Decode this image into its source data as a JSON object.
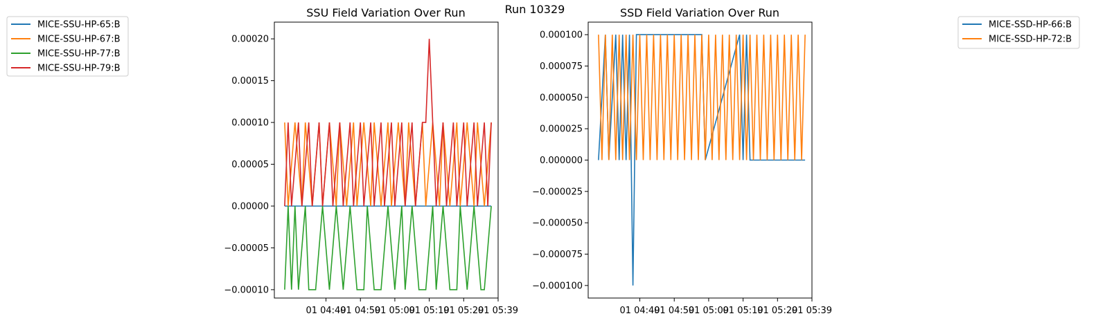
{
  "suptitle": "Run 10329",
  "chart_data": [
    {
      "type": "line",
      "title": "SSU Field Variation Over Run",
      "xlabel": "",
      "ylabel": "",
      "ylim": [
        -0.00011,
        0.00022
      ],
      "xlim": [
        "01 04:34",
        "01 05:39"
      ],
      "y_ticks": [
        -0.0001,
        -5e-05,
        0,
        5e-05,
        0.0001,
        0.00015,
        0.0002
      ],
      "y_tick_labels": [
        "−0.00010",
        "−0.00005",
        "0.00000",
        "0.00005",
        "0.00010",
        "0.00015",
        "0.00020"
      ],
      "x_ticks": [
        "01 04:49",
        "01 04:59",
        "01 05:09",
        "01 05:19",
        "01 05:29",
        "01 05:39"
      ],
      "legend": "outside-left",
      "series": [
        {
          "name": "MICE-SSU-HP-65:B",
          "color": "#1f77b4",
          "x": [
            "01 04:37",
            "01 05:37"
          ],
          "values": [
            0,
            0
          ]
        },
        {
          "name": "MICE-SSU-HP-67:B",
          "color": "#ff7f0e",
          "x": [
            "01 04:37",
            "01 04:38",
            "01 04:40",
            "01 04:42",
            "01 04:43",
            "01 04:45",
            "01 04:47",
            "01 04:48",
            "01 04:50",
            "01 04:52",
            "01 04:53",
            "01 04:55",
            "01 04:57",
            "01 04:58",
            "01 05:00",
            "01 05:02",
            "01 05:03",
            "01 05:05",
            "01 05:07",
            "01 05:08",
            "01 05:10",
            "01 05:12",
            "01 05:13",
            "01 05:15",
            "01 05:17",
            "01 05:18",
            "01 05:20",
            "01 05:22",
            "01 05:23",
            "01 05:25",
            "01 05:27",
            "01 05:28",
            "01 05:30",
            "01 05:32",
            "01 05:33",
            "01 05:35",
            "01 05:37"
          ],
          "values": [
            0.0001,
            0,
            0.0001,
            0,
            0.0001,
            0,
            0.0001,
            0,
            0.0001,
            0,
            0.0001,
            0,
            0.0001,
            0,
            0.0001,
            0,
            0.0001,
            0,
            0.0001,
            0,
            0.0001,
            0,
            0.0001,
            0,
            0.0001,
            0,
            0.0001,
            0,
            0.0001,
            0,
            0.0001,
            0,
            0.0001,
            0,
            0.0001,
            0,
            0.0001
          ]
        },
        {
          "name": "MICE-SSU-HP-77:B",
          "color": "#2ca02c",
          "x": [
            "01 04:37",
            "01 04:38",
            "01 04:39",
            "01 04:40",
            "01 04:41",
            "01 04:43",
            "01 04:44",
            "01 04:46",
            "01 04:48",
            "01 04:50",
            "01 04:52",
            "01 04:54",
            "01 04:56",
            "01 04:58",
            "01 05:00",
            "01 05:01",
            "01 05:03",
            "01 05:05",
            "01 05:07",
            "01 05:09",
            "01 05:11",
            "01 05:12",
            "01 05:14",
            "01 05:16",
            "01 05:18",
            "01 05:20",
            "01 05:21",
            "01 05:23",
            "01 05:25",
            "01 05:27",
            "01 05:28",
            "01 05:30",
            "01 05:32",
            "01 05:34",
            "01 05:35",
            "01 05:37"
          ],
          "values": [
            -0.0001,
            0,
            -0.0001,
            0,
            -0.0001,
            0,
            -0.0001,
            -0.0001,
            0,
            -0.0001,
            0,
            -0.0001,
            0,
            -0.0001,
            -0.0001,
            0,
            -0.0001,
            -0.0001,
            0,
            -0.0001,
            0,
            -0.0001,
            0,
            -0.0001,
            -0.0001,
            0,
            -0.0001,
            0,
            -0.0001,
            -0.0001,
            0,
            -0.0001,
            0,
            -0.0001,
            -0.0001,
            0
          ]
        },
        {
          "name": "MICE-SSU-HP-79:B",
          "color": "#d62728",
          "x": [
            "01 04:37",
            "01 04:38",
            "01 04:39",
            "01 04:41",
            "01 04:42",
            "01 04:44",
            "01 04:45",
            "01 04:47",
            "01 04:48",
            "01 04:50",
            "01 04:51",
            "01 04:53",
            "01 04:54",
            "01 04:56",
            "01 04:57",
            "01 04:59",
            "01 05:00",
            "01 05:02",
            "01 05:03",
            "01 05:05",
            "01 05:06",
            "01 05:08",
            "01 05:09",
            "01 05:11",
            "01 05:12",
            "01 05:14",
            "01 05:15",
            "01 05:17",
            "01 05:18",
            "01 05:19",
            "01 05:20",
            "01 05:21",
            "01 05:23",
            "01 05:24",
            "01 05:26",
            "01 05:27",
            "01 05:29",
            "01 05:30",
            "01 05:32",
            "01 05:33",
            "01 05:35",
            "01 05:36",
            "01 05:37"
          ],
          "values": [
            0,
            0.0001,
            0,
            0.0001,
            0,
            0.0001,
            0,
            0.0001,
            0,
            0.0001,
            0,
            0.0001,
            0,
            0.0001,
            0,
            0.0001,
            0,
            0.0001,
            0,
            0.0001,
            0,
            0.0001,
            0,
            0.0001,
            0,
            0.0001,
            0,
            0.0001,
            0.0001,
            0.0002,
            0.0001,
            0,
            0.0001,
            0,
            0.0001,
            0,
            0.0001,
            0,
            0.0001,
            0,
            0.0001,
            0,
            0.0001
          ]
        }
      ]
    },
    {
      "type": "line",
      "title": "SSD Field Variation Over Run",
      "xlabel": "",
      "ylabel": "",
      "ylim": [
        -0.00011,
        0.00011
      ],
      "xlim": [
        "01 04:34",
        "01 05:39"
      ],
      "y_ticks": [
        -0.0001,
        -7.5e-05,
        -5e-05,
        -2.5e-05,
        0,
        2.5e-05,
        5e-05,
        7.5e-05,
        0.0001
      ],
      "y_tick_labels": [
        "−0.000100",
        "−0.000075",
        "−0.000050",
        "−0.000025",
        "0.000000",
        "0.000025",
        "0.000050",
        "0.000075",
        "0.000100"
      ],
      "x_ticks": [
        "01 04:49",
        "01 04:59",
        "01 05:09",
        "01 05:19",
        "01 05:29",
        "01 05:39"
      ],
      "legend": "outside-right",
      "series": [
        {
          "name": "MICE-SSD-HP-66:B",
          "color": "#1f77b4",
          "x": [
            "01 04:37",
            "01 04:39",
            "01 04:40",
            "01 04:42",
            "01 04:43",
            "01 04:44",
            "01 04:45",
            "01 04:46",
            "01 04:47",
            "01 04:48",
            "01 05:07",
            "01 05:08",
            "01 05:18",
            "01 05:19",
            "01 05:20",
            "01 05:21",
            "01 05:37"
          ],
          "values": [
            0,
            0.0001,
            0,
            0.0001,
            0,
            0.0001,
            0,
            0.0001,
            -0.0001,
            0.0001,
            0.0001,
            0,
            0.0001,
            0,
            0.0001,
            0,
            0
          ]
        },
        {
          "name": "MICE-SSD-HP-72:B",
          "color": "#ff7f0e",
          "x": [
            "01 04:37",
            "01 04:38",
            "01 04:39",
            "01 04:40",
            "01 04:41",
            "01 04:42",
            "01 04:43",
            "01 04:44",
            "01 04:45",
            "01 04:46",
            "01 04:47",
            "01 04:48",
            "01 04:49",
            "01 04:50",
            "01 04:51",
            "01 04:52",
            "01 04:53",
            "01 04:54",
            "01 04:55",
            "01 04:56",
            "01 04:57",
            "01 04:58",
            "01 04:59",
            "01 05:00",
            "01 05:01",
            "01 05:02",
            "01 05:03",
            "01 05:04",
            "01 05:05",
            "01 05:06",
            "01 05:07",
            "01 05:08",
            "01 05:09",
            "01 05:10",
            "01 05:11",
            "01 05:12",
            "01 05:13",
            "01 05:14",
            "01 05:15",
            "01 05:16",
            "01 05:17",
            "01 05:18",
            "01 05:19",
            "01 05:20",
            "01 05:21",
            "01 05:22",
            "01 05:23",
            "01 05:24",
            "01 05:25",
            "01 05:26",
            "01 05:27",
            "01 05:28",
            "01 05:29",
            "01 05:30",
            "01 05:31",
            "01 05:32",
            "01 05:33",
            "01 05:34",
            "01 05:35",
            "01 05:36",
            "01 05:37"
          ],
          "values": [
            0.0001,
            0,
            0.0001,
            0,
            0.0001,
            0,
            0.0001,
            0,
            0.0001,
            0,
            0.0001,
            0,
            0.0001,
            0,
            0.0001,
            0,
            0.0001,
            0,
            0.0001,
            0,
            0.0001,
            0,
            0.0001,
            0,
            0.0001,
            0,
            0.0001,
            0,
            0.0001,
            0,
            0.0001,
            0,
            0.0001,
            0,
            0.0001,
            0,
            0.0001,
            0,
            0.0001,
            0,
            0.0001,
            0,
            0.0001,
            0,
            0.0001,
            0,
            0.0001,
            0,
            0.0001,
            0,
            0.0001,
            0,
            0.0001,
            0,
            0.0001,
            0,
            0.0001,
            0,
            0.0001,
            0,
            0.0001
          ]
        }
      ]
    }
  ]
}
